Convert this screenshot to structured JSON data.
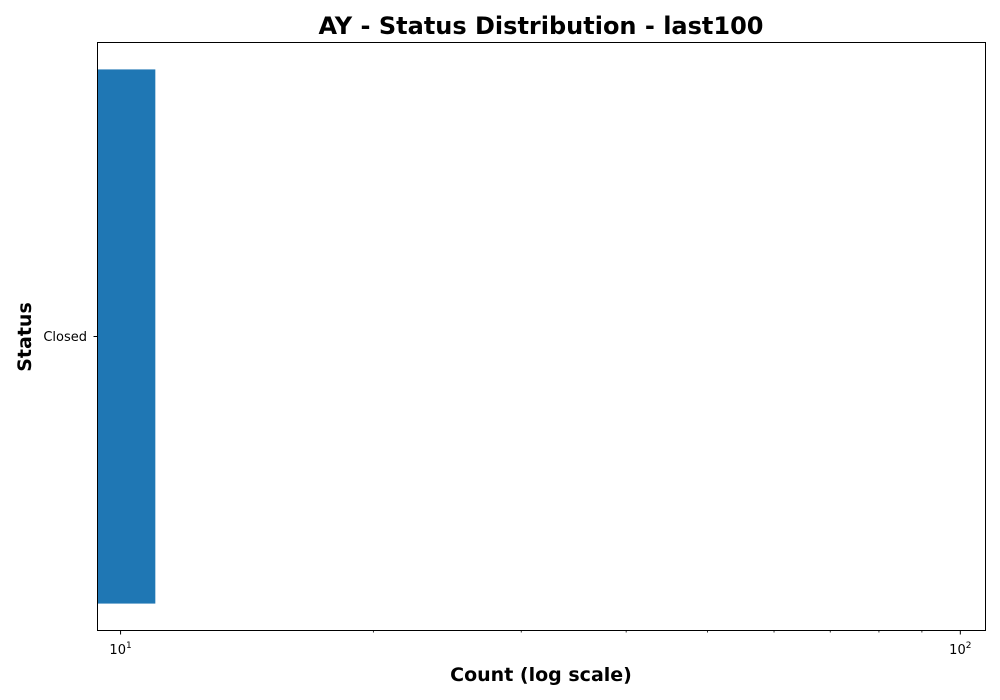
{
  "chart_data": {
    "type": "bar",
    "orientation": "horizontal",
    "title": "AY - Status Distribution - last100",
    "xlabel": "Count (log scale)",
    "ylabel": "Status",
    "x_scale": "log",
    "xlim": [
      9.4,
      107
    ],
    "categories": [
      "Closed"
    ],
    "values": [
      11
    ],
    "x_ticks": [
      {
        "value": 10,
        "base": "10",
        "exponent": "1"
      },
      {
        "value": 100,
        "base": "10",
        "exponent": "2"
      }
    ],
    "grid": false,
    "legend": false,
    "bar_color": "#1f77b4"
  }
}
